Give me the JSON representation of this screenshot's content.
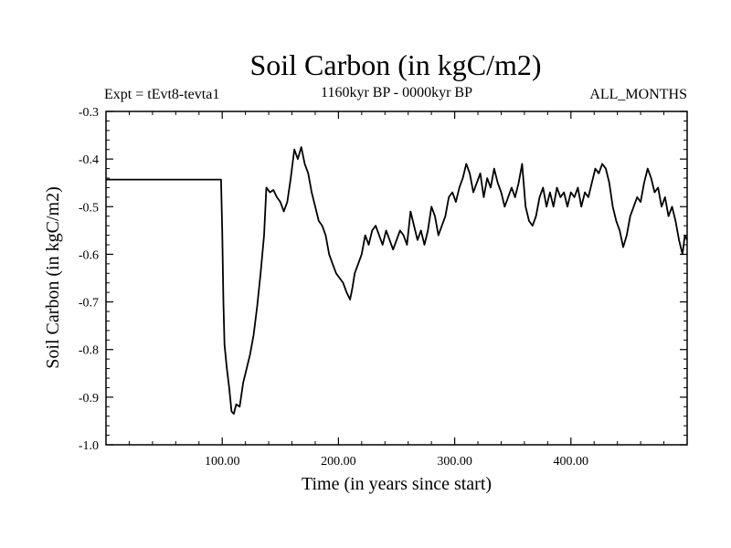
{
  "chart_data": {
    "type": "line",
    "title": "Soil Carbon (in kgC/m2)",
    "left_subtitle": "Expt = tEvt8-tevta1",
    "center_subtitle": "1160kyr BP - 0000kyr BP",
    "right_subtitle": "ALL_MONTHS",
    "xlabel": "Time (in years since start)",
    "ylabel": "Soil Carbon (in kgC/m2)",
    "xlim": [
      0,
      500
    ],
    "ylim": [
      -1.0,
      -0.3
    ],
    "xticks": [
      100,
      200,
      300,
      400
    ],
    "xtick_labels": [
      "100.00",
      "200.00",
      "300.00",
      "400.00"
    ],
    "yticks": [
      -1.0,
      -0.9,
      -0.8,
      -0.7,
      -0.6,
      -0.5,
      -0.4,
      -0.3
    ],
    "ytick_labels": [
      "-1.0",
      "-0.9",
      "-0.8",
      "-0.7",
      "-0.6",
      "-0.5",
      "-0.4",
      "-0.3"
    ],
    "grid": false,
    "series": [
      {
        "name": "Soil Carbon",
        "x": [
          0,
          99,
          100,
          101,
          102,
          104,
          106,
          108,
          110,
          112,
          115,
          118,
          121,
          124,
          127,
          130,
          133,
          136,
          138,
          141,
          144,
          147,
          150,
          153,
          156,
          159,
          162,
          165,
          168,
          171,
          174,
          177,
          180,
          183,
          186,
          189,
          192,
          195,
          198,
          201,
          204,
          207,
          210,
          212,
          214,
          217,
          220,
          223,
          226,
          229,
          232,
          235,
          238,
          241,
          244,
          247,
          250,
          253,
          256,
          259,
          262,
          265,
          268,
          271,
          274,
          277,
          280,
          283,
          286,
          289,
          292,
          295,
          298,
          301,
          304,
          307,
          310,
          313,
          316,
          319,
          322,
          325,
          328,
          331,
          334,
          337,
          340,
          343,
          346,
          349,
          352,
          355,
          358,
          361,
          364,
          367,
          370,
          373,
          376,
          379,
          382,
          385,
          388,
          391,
          394,
          397,
          400,
          403,
          406,
          409,
          412,
          415,
          418,
          421,
          424,
          427,
          430,
          433,
          436,
          439,
          442,
          445,
          448,
          451,
          454,
          457,
          460,
          463,
          466,
          469,
          472,
          475,
          478,
          481,
          484,
          487,
          490,
          493,
          496,
          498,
          500
        ],
        "values": [
          -0.443,
          -0.443,
          -0.55,
          -0.7,
          -0.79,
          -0.84,
          -0.88,
          -0.93,
          -0.935,
          -0.915,
          -0.92,
          -0.87,
          -0.84,
          -0.81,
          -0.77,
          -0.71,
          -0.64,
          -0.56,
          -0.46,
          -0.47,
          -0.465,
          -0.48,
          -0.49,
          -0.51,
          -0.49,
          -0.44,
          -0.38,
          -0.4,
          -0.375,
          -0.41,
          -0.43,
          -0.47,
          -0.5,
          -0.53,
          -0.54,
          -0.56,
          -0.6,
          -0.62,
          -0.64,
          -0.65,
          -0.66,
          -0.68,
          -0.695,
          -0.67,
          -0.64,
          -0.62,
          -0.6,
          -0.56,
          -0.58,
          -0.55,
          -0.54,
          -0.56,
          -0.58,
          -0.55,
          -0.57,
          -0.59,
          -0.57,
          -0.55,
          -0.56,
          -0.58,
          -0.51,
          -0.54,
          -0.57,
          -0.55,
          -0.58,
          -0.55,
          -0.5,
          -0.52,
          -0.56,
          -0.54,
          -0.52,
          -0.48,
          -0.47,
          -0.49,
          -0.46,
          -0.44,
          -0.41,
          -0.43,
          -0.47,
          -0.45,
          -0.43,
          -0.48,
          -0.44,
          -0.46,
          -0.42,
          -0.45,
          -0.47,
          -0.5,
          -0.48,
          -0.46,
          -0.48,
          -0.45,
          -0.41,
          -0.5,
          -0.53,
          -0.54,
          -0.52,
          -0.48,
          -0.46,
          -0.5,
          -0.47,
          -0.5,
          -0.46,
          -0.48,
          -0.47,
          -0.5,
          -0.47,
          -0.48,
          -0.46,
          -0.5,
          -0.47,
          -0.48,
          -0.45,
          -0.42,
          -0.43,
          -0.41,
          -0.42,
          -0.45,
          -0.5,
          -0.53,
          -0.55,
          -0.585,
          -0.56,
          -0.52,
          -0.5,
          -0.48,
          -0.49,
          -0.45,
          -0.42,
          -0.44,
          -0.47,
          -0.46,
          -0.5,
          -0.48,
          -0.52,
          -0.5,
          -0.53,
          -0.57,
          -0.6,
          -0.56,
          -0.57
        ]
      }
    ]
  }
}
